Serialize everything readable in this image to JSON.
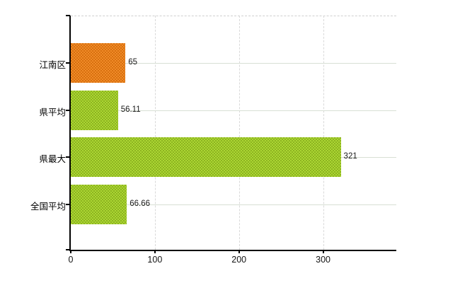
{
  "chart_data": {
    "type": "bar",
    "orientation": "horizontal",
    "title": "",
    "xlabel": "",
    "ylabel": "",
    "categories": [
      "江南区",
      "県平均",
      "県最大",
      "全国平均"
    ],
    "values": [
      65,
      56.11,
      321,
      66.66
    ],
    "value_labels": [
      "65",
      "56.11",
      "321",
      "66.66"
    ],
    "series": [
      {
        "name": "district-highlight",
        "color": "#e1791c",
        "indices": [
          0
        ]
      },
      {
        "name": "reference-values",
        "color": "#9bc52e",
        "indices": [
          1,
          2,
          3
        ]
      }
    ],
    "bar_color_classes": [
      "orange",
      "green",
      "green",
      "green"
    ],
    "x_ticks": [
      0,
      100,
      200,
      300
    ],
    "x_tick_labels": [
      "0",
      "100",
      "200",
      "300"
    ],
    "xlim": [
      0,
      387
    ],
    "grid": true,
    "gridlines": {
      "vertical": "dashed light gray at 100/200/300",
      "horizontal": "solid light gray at each category center"
    },
    "legend": false
  },
  "colors": {
    "bar_orange_base": "#d8700f",
    "bar_orange_checker": "#f08b28",
    "bar_green_base": "#8db320",
    "bar_green_checker": "#abd733",
    "axis": "#000000",
    "vgrid": "#d9d9d9",
    "hgrid": "#d8dfd4",
    "top_border": "#cfcfcf",
    "text": "#1a1a1a",
    "background": "#ffffff"
  }
}
